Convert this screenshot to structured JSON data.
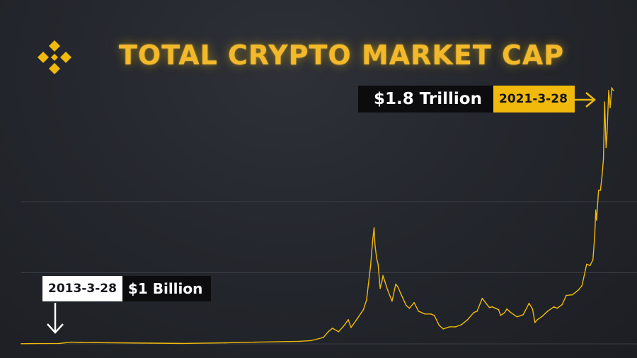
{
  "header": {
    "title": "TOTAL CRYPTO MARKET CAP",
    "logo_icon": "binance-diamond-logo"
  },
  "annotations": {
    "peak": {
      "value_label": "$1.8 Trillion",
      "date_label": "2021-3-28"
    },
    "start": {
      "date_label": "2013-3-28",
      "value_label": "$1 Billion"
    }
  },
  "colors": {
    "background": "#24272d",
    "line": "#f0b90b",
    "accent": "#f0b90b",
    "gridline": "#3b3e45",
    "label_dark": "#0c0c0e",
    "label_light": "#ffffff"
  },
  "chart_data": {
    "type": "line",
    "title": "TOTAL CRYPTO MARKET CAP",
    "xlabel": "",
    "ylabel": "",
    "y_unit": "USD (billions)",
    "xlim": [
      "2013-03-28",
      "2021-04-10"
    ],
    "ylim": [
      0,
      1900
    ],
    "grid": "horizontal",
    "axes_visible": false,
    "series": [
      {
        "x": [
          "2013-03-28",
          "2013-06-01",
          "2013-10-01",
          "2013-12-01",
          "2014-01-15",
          "2014-06-01",
          "2015-01-01",
          "2015-06-01",
          "2016-01-01",
          "2016-06-01",
          "2017-01-01",
          "2017-03-01",
          "2017-05-01",
          "2017-05-25",
          "2017-06-15",
          "2017-07-15",
          "2017-08-15",
          "2017-09-01",
          "2017-09-15",
          "2017-10-15",
          "2017-11-15",
          "2017-12-01",
          "2017-12-10",
          "2017-12-20",
          "2018-01-01",
          "2018-01-07",
          "2018-01-12",
          "2018-01-20",
          "2018-01-27",
          "2018-02-06",
          "2018-02-15",
          "2018-02-20",
          "2018-03-01",
          "2018-03-15",
          "2018-04-06",
          "2018-04-24",
          "2018-05-05",
          "2018-05-20",
          "2018-06-15",
          "2018-07-01",
          "2018-07-24",
          "2018-08-15",
          "2018-09-15",
          "2018-10-15",
          "2018-11-01",
          "2018-11-25",
          "2018-12-15",
          "2019-01-15",
          "2019-02-15",
          "2019-03-15",
          "2019-04-15",
          "2019-05-15",
          "2019-06-01",
          "2019-06-26",
          "2019-07-15",
          "2019-08-01",
          "2019-08-15",
          "2019-09-15",
          "2019-09-25",
          "2019-10-15",
          "2019-10-26",
          "2019-11-15",
          "2019-12-15",
          "2020-01-15",
          "2020-02-13",
          "2020-03-01",
          "2020-03-13",
          "2020-03-25",
          "2020-04-15",
          "2020-05-15",
          "2020-06-15",
          "2020-07-01",
          "2020-07-25",
          "2020-08-15",
          "2020-09-15",
          "2020-10-15",
          "2020-11-01",
          "2020-11-24",
          "2020-12-10",
          "2020-12-25",
          "2021-01-03",
          "2021-01-08",
          "2021-01-12",
          "2021-01-22",
          "2021-01-31",
          "2021-02-08",
          "2021-02-15",
          "2021-02-21",
          "2021-02-28",
          "2021-03-05",
          "2021-03-13",
          "2021-03-20",
          "2021-03-28",
          "2021-04-05"
        ],
        "y": [
          1,
          2,
          3,
          12,
          10,
          8,
          5,
          3,
          7,
          12,
          18,
          23,
          45,
          85,
          110,
          85,
          135,
          170,
          115,
          175,
          240,
          310,
          420,
          540,
          740,
          815,
          690,
          600,
          560,
          390,
          440,
          480,
          440,
          380,
          300,
          420,
          400,
          350,
          270,
          250,
          290,
          230,
          210,
          210,
          200,
          130,
          105,
          120,
          120,
          135,
          170,
          220,
          230,
          320,
          285,
          255,
          260,
          240,
          200,
          220,
          245,
          220,
          190,
          205,
          285,
          245,
          150,
          170,
          190,
          230,
          260,
          250,
          275,
          340,
          345,
          380,
          410,
          560,
          550,
          590,
          760,
          940,
          870,
          1080,
          1080,
          1180,
          1300,
          1700,
          1380,
          1480,
          1780,
          1660,
          1800,
          1780
        ]
      }
    ]
  }
}
